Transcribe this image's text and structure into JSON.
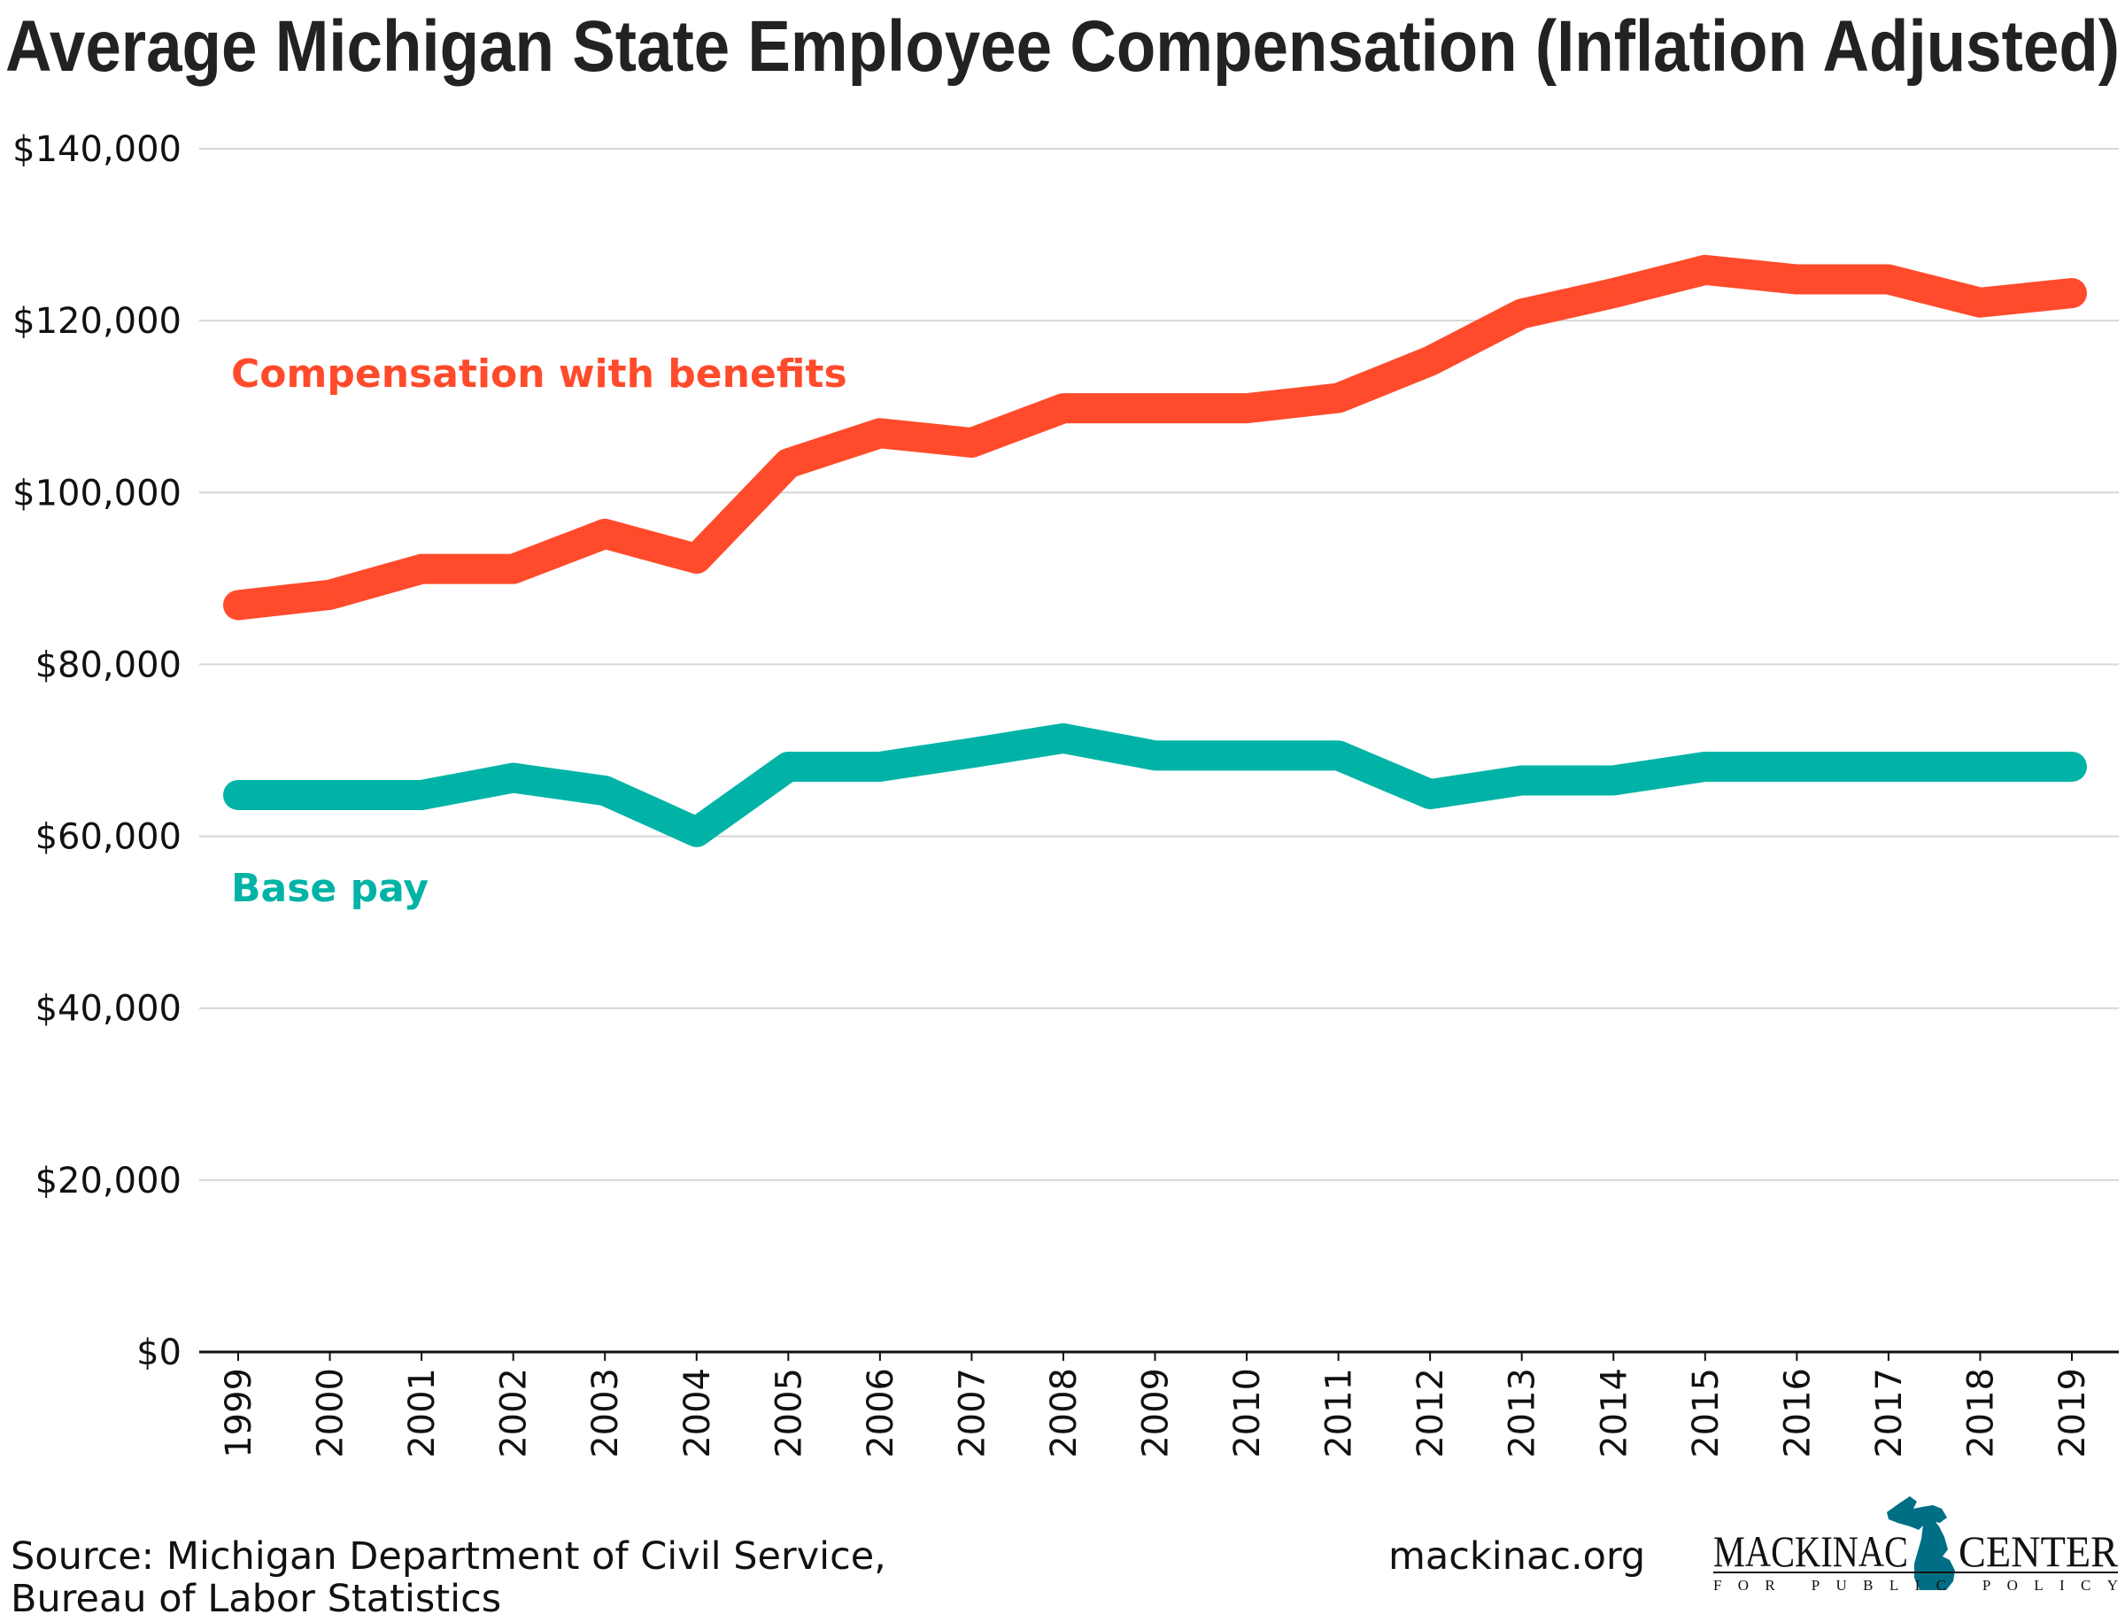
{
  "chart_data": {
    "type": "line",
    "title": "Average Michigan State Employee Compensation (Inflation Adjusted)",
    "xlabel": "",
    "ylabel": "",
    "ylim": [
      0,
      140000
    ],
    "yticks": [
      0,
      20000,
      40000,
      60000,
      80000,
      100000,
      120000,
      140000
    ],
    "ytick_labels": [
      "$0",
      "$20,000",
      "$40,000",
      "$60,000",
      "$80,000",
      "$100,000",
      "$120,000",
      "$140,000"
    ],
    "grid": true,
    "x": [
      "1999",
      "2000",
      "2001",
      "2002",
      "2003",
      "2004",
      "2005",
      "2006",
      "2007",
      "2008",
      "2009",
      "2010",
      "2011",
      "2012",
      "2013",
      "2014",
      "2015",
      "2016",
      "2017",
      "2018",
      "2019"
    ],
    "series": [
      {
        "name": "Compensation with benefits",
        "color": "#FF4B2B",
        "values": [
          86900,
          88100,
          91100,
          91100,
          95200,
          92300,
          103400,
          106900,
          105800,
          109800,
          109800,
          109800,
          111000,
          115300,
          120800,
          123200,
          125900,
          124800,
          124800,
          122100,
          123200
        ]
      },
      {
        "name": "Base pay",
        "color": "#00B3A6",
        "values": [
          64800,
          64800,
          64800,
          66800,
          65300,
          60500,
          68100,
          68100,
          69700,
          71400,
          69400,
          69400,
          69400,
          64900,
          66500,
          66500,
          68100,
          68100,
          68100,
          68100,
          68100
        ]
      }
    ]
  },
  "footer": {
    "source_line1": "Source: Michigan Department of Civil Service,",
    "source_line2": "Bureau of Labor Statistics",
    "website": "mackinac.org"
  },
  "logo": {
    "word1": "MACKINAC",
    "word2": "CENTER",
    "tagline": "FOR PUBLIC POLICY",
    "color": "#006F85",
    "icon": "michigan-map-icon"
  }
}
